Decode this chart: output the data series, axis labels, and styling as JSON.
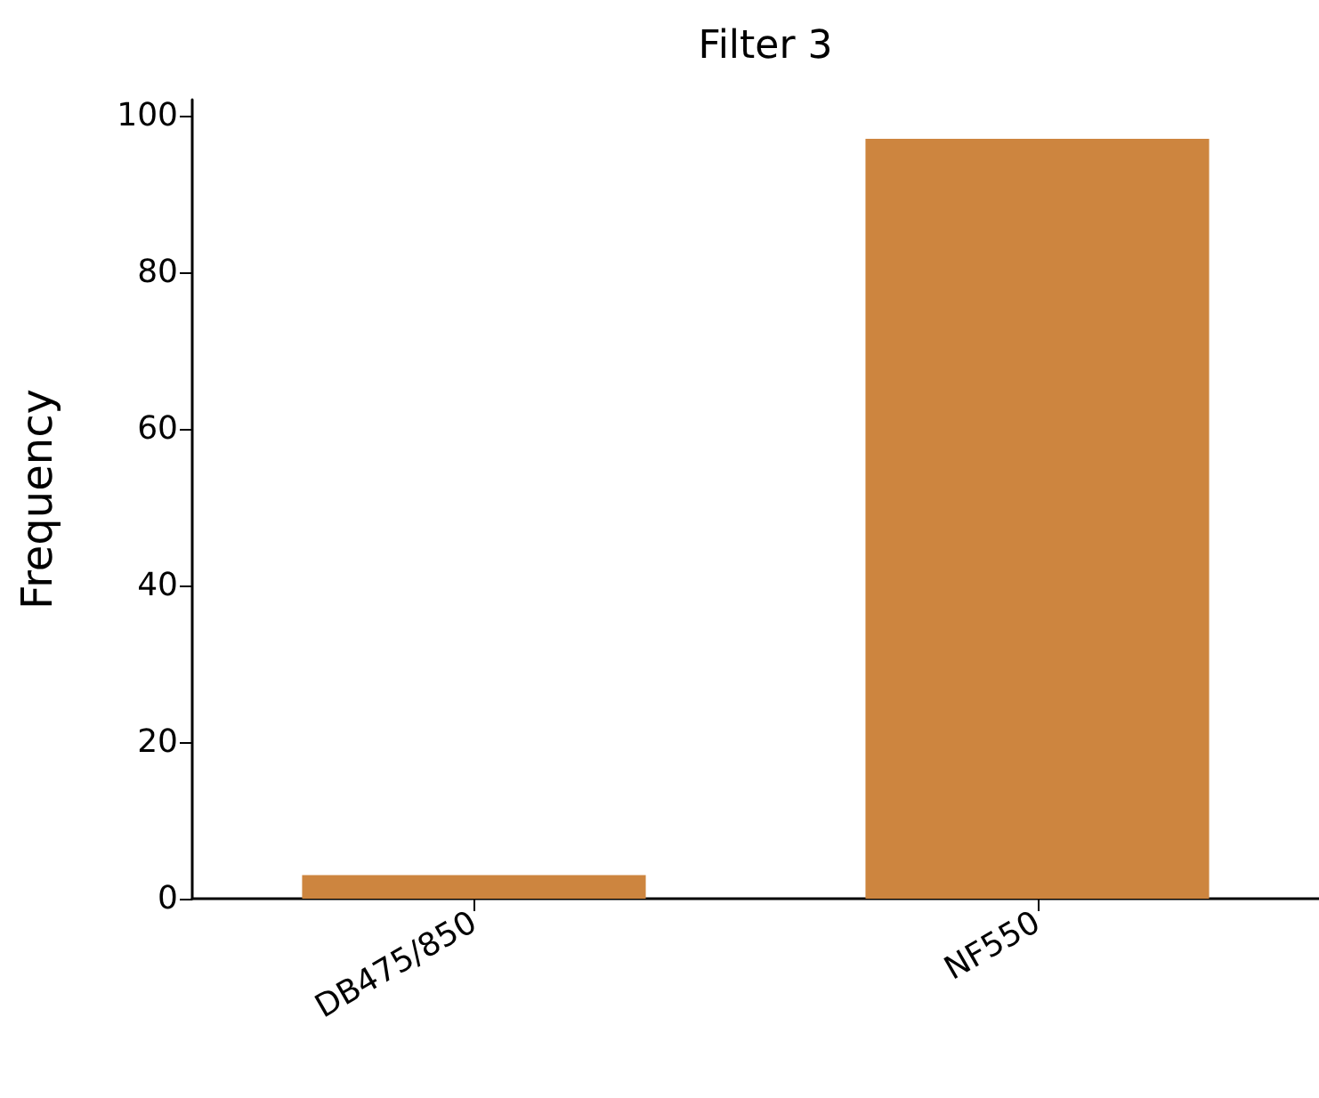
{
  "chart_data": {
    "type": "bar",
    "title": "Filter 3",
    "ylabel": "Frequency",
    "categories": [
      "DB475/850",
      "NF550"
    ],
    "values": [
      3,
      97
    ],
    "color": "#cd853f",
    "ylim": [
      0,
      102
    ],
    "yticks": [
      0,
      20,
      40,
      60,
      80,
      100
    ]
  }
}
